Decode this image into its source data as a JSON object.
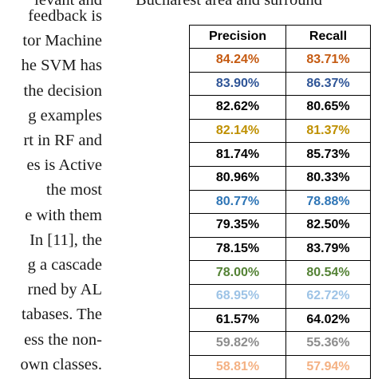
{
  "body_text": [
    "feedback is",
    "tor Machine",
    "he SVM has",
    "the decision",
    "g examples",
    "rt in RF and",
    "es is Active",
    "the most",
    "e with them",
    "In [11], the",
    "g a cascade",
    "rned by AL",
    "tabases. The",
    "ess the non-",
    "own classes."
  ],
  "top_text_left": "levant and",
  "caption_text": "Bucharest area and surround",
  "table": {
    "headers": [
      "Precision",
      "Recall"
    ],
    "rows": [
      {
        "precision": "84.24%",
        "recall": "83.71%",
        "color": "#c55a11"
      },
      {
        "precision": "83.90%",
        "recall": "86.37%",
        "color": "#2f5597"
      },
      {
        "precision": "82.62%",
        "recall": "80.65%",
        "color": "#000000"
      },
      {
        "precision": "82.14%",
        "recall": "81.37%",
        "color": "#bf9000"
      },
      {
        "precision": "81.74%",
        "recall": "85.73%",
        "color": "#000000"
      },
      {
        "precision": "80.96%",
        "recall": "80.33%",
        "color": "#000000"
      },
      {
        "precision": "80.77%",
        "recall": "78.88%",
        "color": "#2e75b6"
      },
      {
        "precision": "79.35%",
        "recall": "82.50%",
        "color": "#000000"
      },
      {
        "precision": "78.15%",
        "recall": "83.79%",
        "color": "#000000"
      },
      {
        "precision": "78.00%",
        "recall": "80.54%",
        "color": "#548235"
      },
      {
        "precision": "68.95%",
        "recall": "62.72%",
        "color": "#9dc3e6"
      },
      {
        "precision": "61.57%",
        "recall": "64.02%",
        "color": "#000000"
      },
      {
        "precision": "59.82%",
        "recall": "55.36%",
        "color": "#8c8c8c"
      },
      {
        "precision": "58.81%",
        "recall": "57.94%",
        "color": "#f4b183"
      }
    ]
  }
}
